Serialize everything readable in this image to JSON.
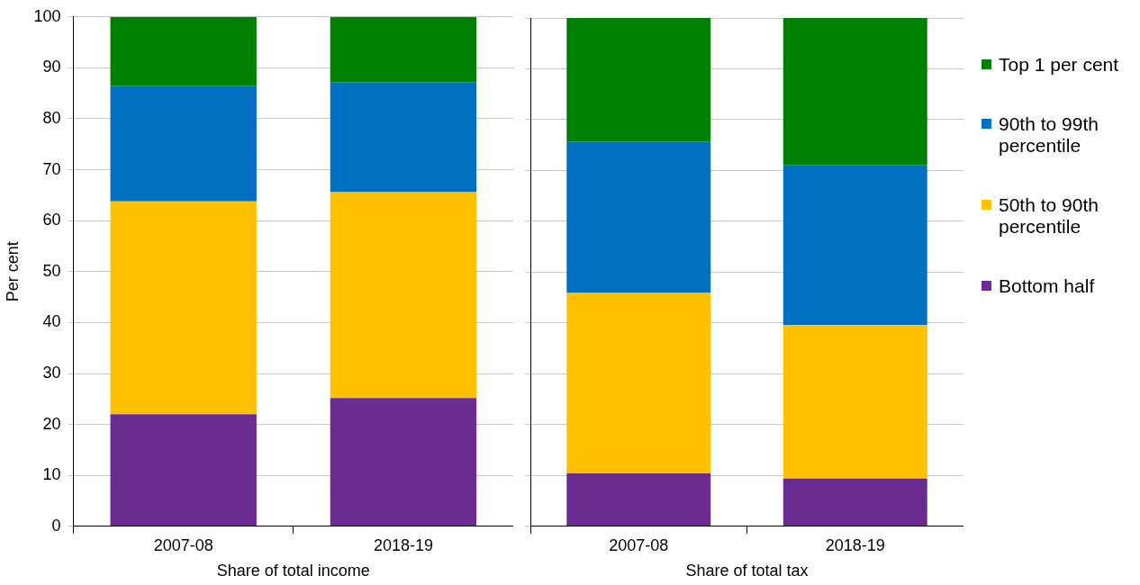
{
  "chart_data": [
    {
      "type": "bar",
      "stacked": true,
      "xlabel": "Share of total income",
      "ylabel": "Per cent",
      "categories": [
        "2007-08",
        "2018-19"
      ],
      "ylim": [
        0,
        100
      ],
      "yticks": [
        0,
        10,
        20,
        30,
        40,
        50,
        60,
        70,
        80,
        90,
        100
      ],
      "grid": "y",
      "legend": "right",
      "series": [
        {
          "name": "Bottom half",
          "color": "#6a2c91",
          "values": [
            22,
            25.2
          ]
        },
        {
          "name": "50th to 90th percentile",
          "color": "#ffc000",
          "values": [
            41.8,
            40.4
          ]
        },
        {
          "name": "90th to 99th percentile",
          "color": "#0070c0",
          "values": [
            22.7,
            21.6
          ]
        },
        {
          "name": "Top 1 per cent",
          "color": "#008000",
          "values": [
            13.5,
            12.8
          ]
        }
      ]
    },
    {
      "type": "bar",
      "stacked": true,
      "xlabel": "Share of total tax",
      "categories": [
        "2007-08",
        "2018-19"
      ],
      "ylim": [
        0,
        100
      ],
      "yticks": [
        0,
        10,
        20,
        30,
        40,
        50,
        60,
        70,
        80,
        90,
        100
      ],
      "grid": "y",
      "tick_labels": "x",
      "series": [
        {
          "color": "#6a2c91",
          "values": [
            10.4,
            9.4
          ]
        },
        {
          "color": "#ffc000",
          "values": [
            35.5,
            30.2
          ]
        },
        {
          "color": "#0070c0",
          "values": [
            29.8,
            31.4
          ]
        },
        {
          "color": "#008000",
          "values": [
            24.3,
            29.0
          ]
        }
      ]
    }
  ]
}
